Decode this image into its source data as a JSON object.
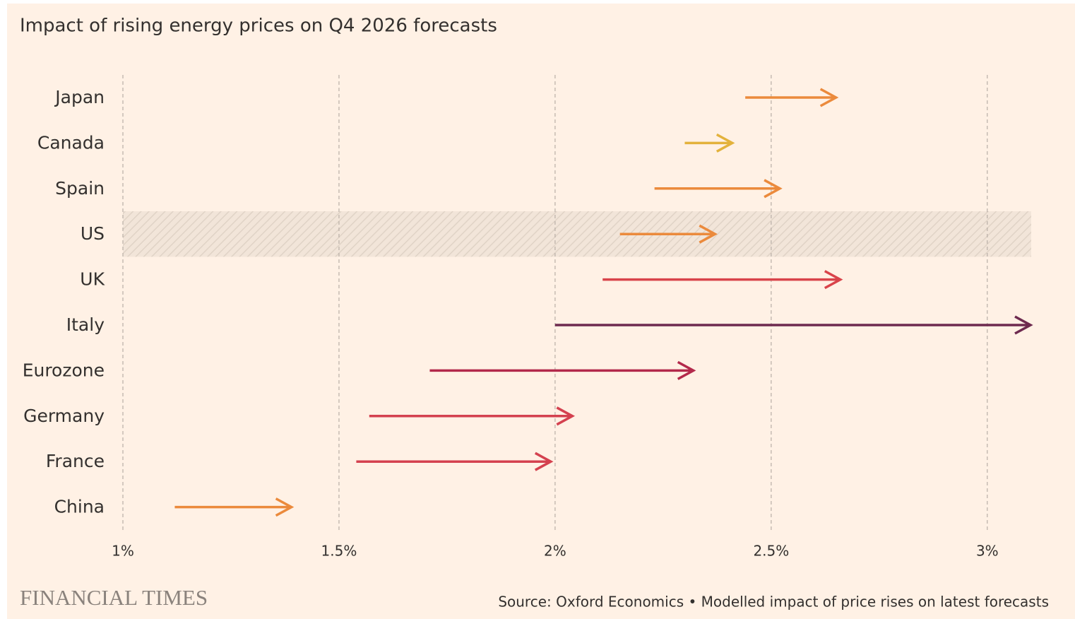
{
  "chart_data": {
    "type": "arrow",
    "title": "Impact of rising energy prices on Q4 2026 forecasts",
    "categories": [
      "Japan",
      "Canada",
      "Spain",
      "US",
      "UK",
      "Italy",
      "Eurozone",
      "Germany",
      "France",
      "China"
    ],
    "start": [
      2.44,
      2.3,
      2.23,
      2.15,
      2.11,
      2.0,
      1.71,
      1.57,
      1.54,
      1.12
    ],
    "end": [
      2.65,
      2.41,
      2.52,
      2.37,
      2.66,
      3.1,
      2.32,
      2.04,
      1.99,
      1.39
    ],
    "colors": [
      "#eb8a3c",
      "#e3b23c",
      "#eb8a3c",
      "#eb8a3c",
      "#d9434a",
      "#6e2a4f",
      "#b3294b",
      "#d4414f",
      "#d4414f",
      "#eb8a3c"
    ],
    "highlight": "US",
    "xlim": [
      1,
      3.1
    ],
    "xticks": [
      {
        "value": 1,
        "label": "1%"
      },
      {
        "value": 1.5,
        "label": "1.5%"
      },
      {
        "value": 2,
        "label": "2%"
      },
      {
        "value": 2.5,
        "label": "2.5%"
      },
      {
        "value": 3,
        "label": "3%"
      }
    ],
    "grid": true,
    "source": "Source: Oxford Economics • Modelled impact of price rises on latest forecasts",
    "logo": "FINANCIAL TIMES"
  }
}
